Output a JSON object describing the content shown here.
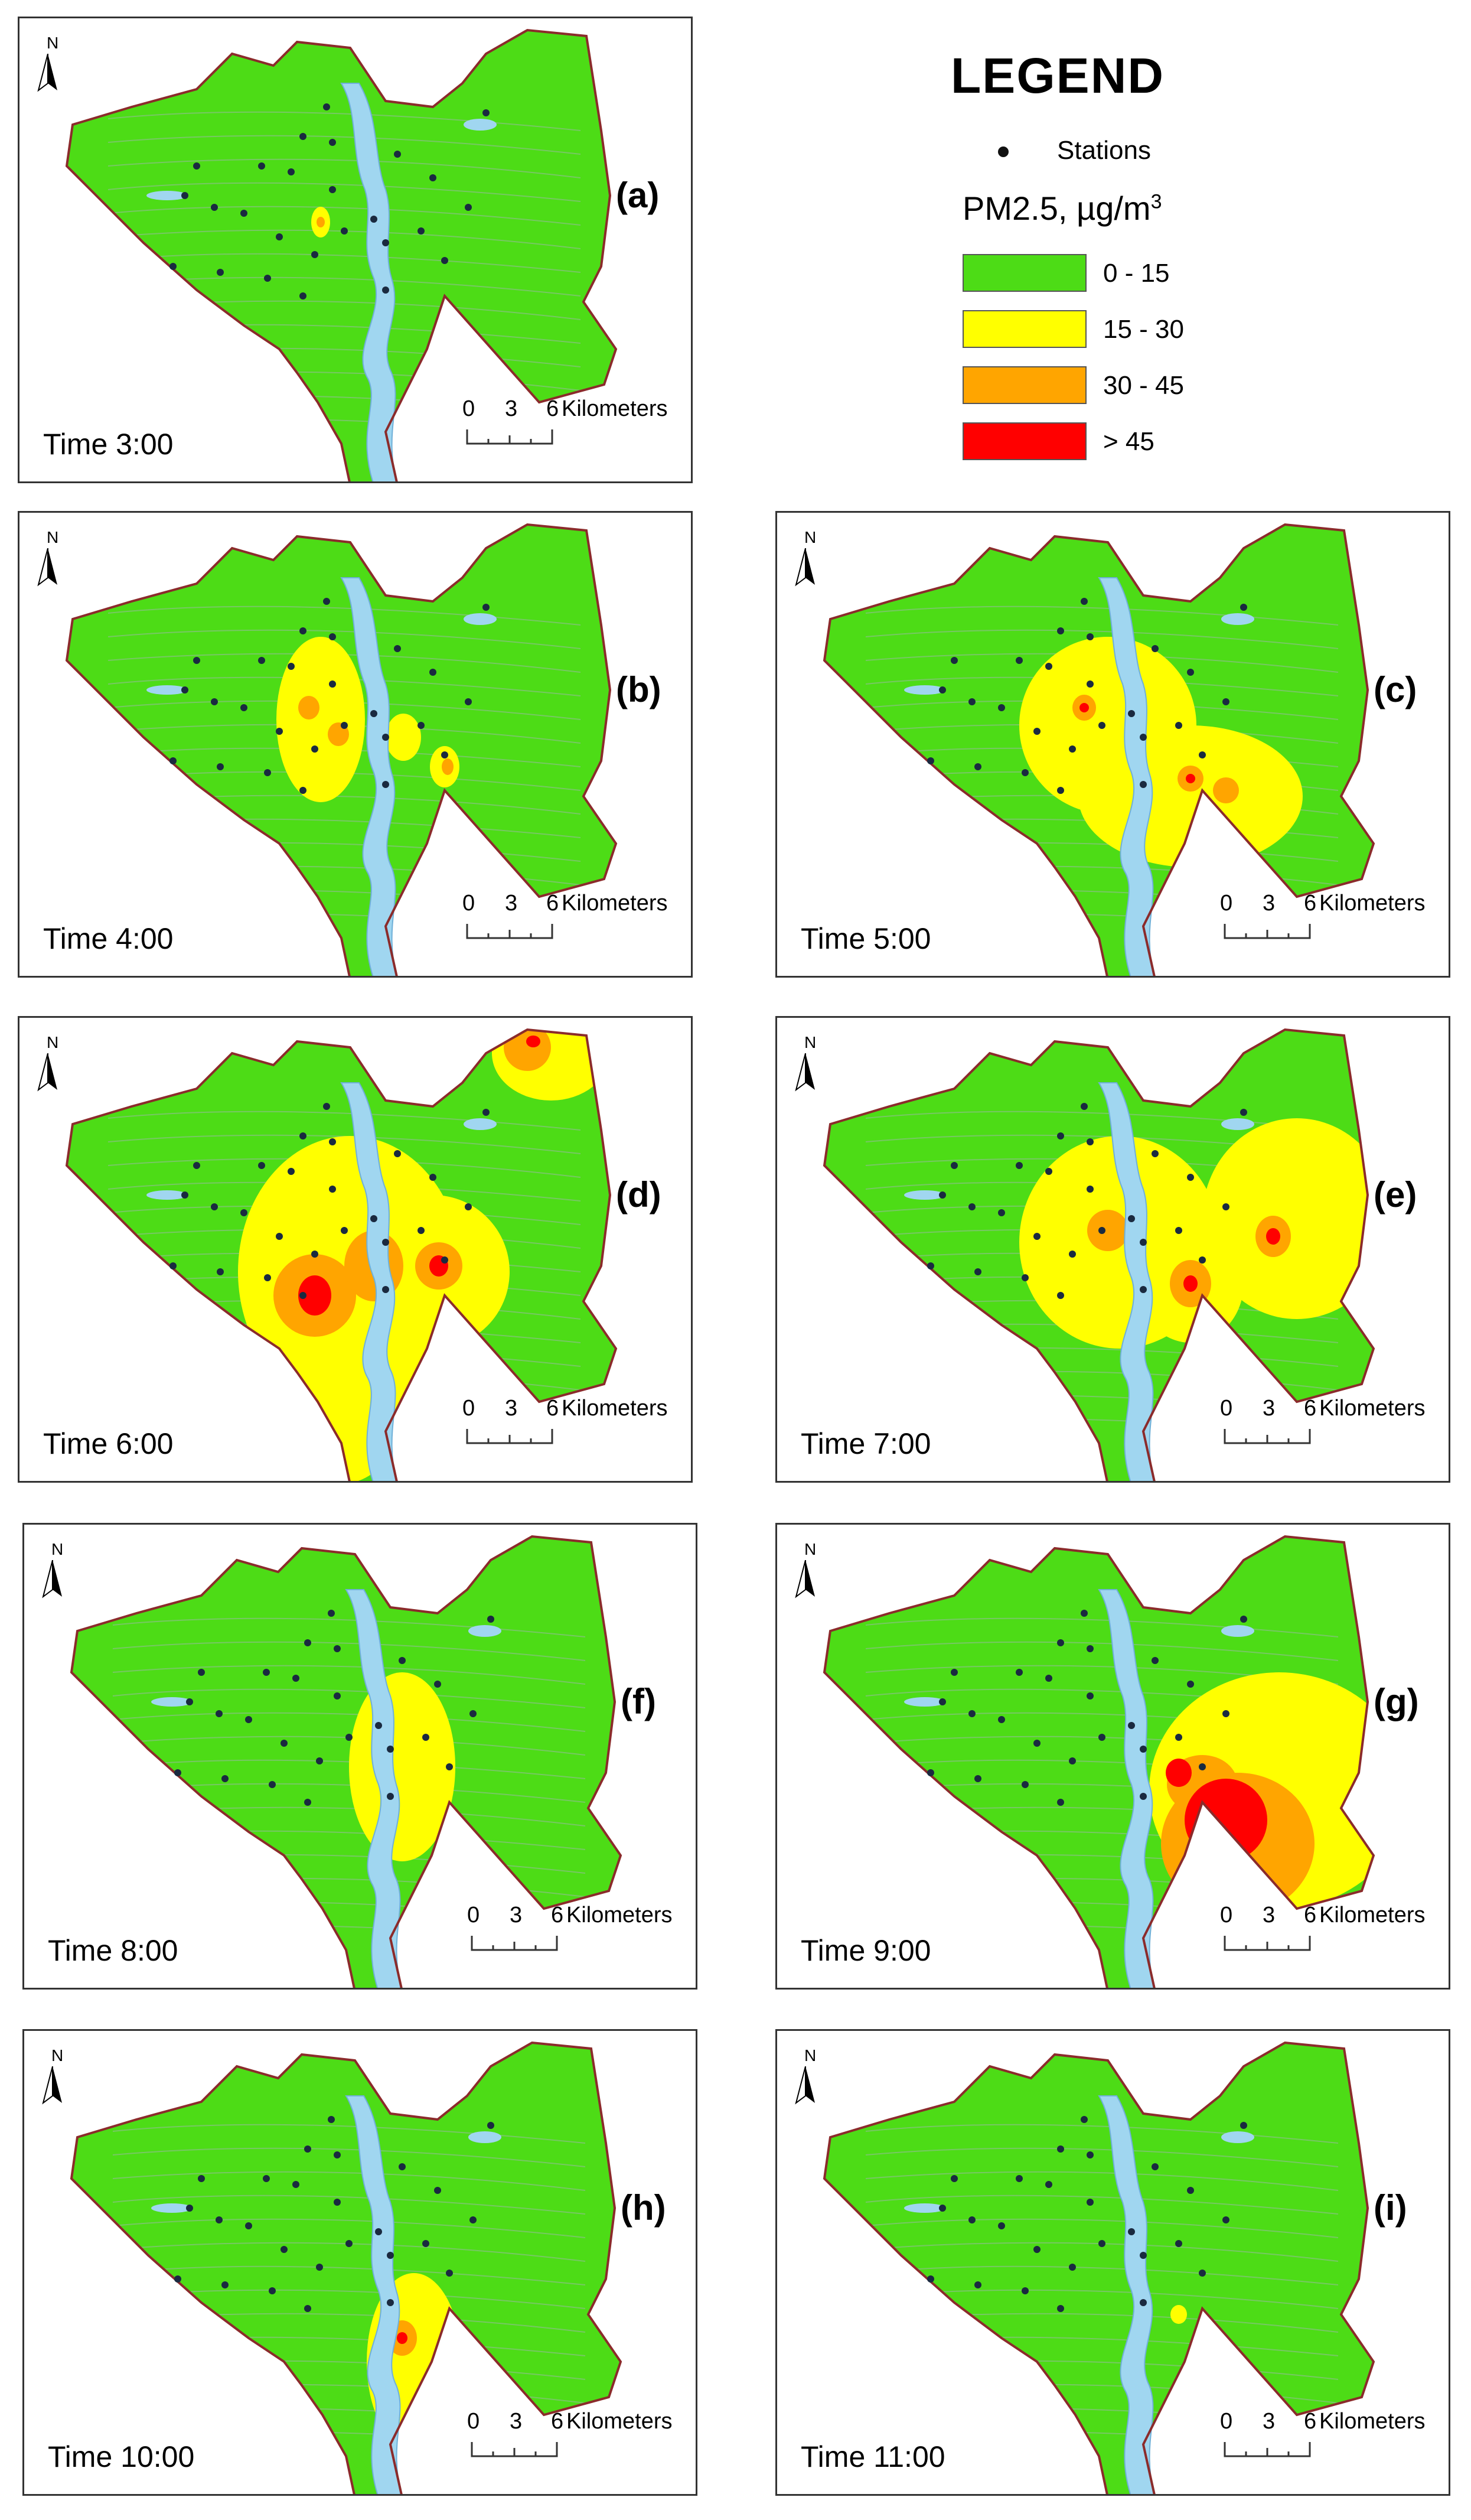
{
  "legend": {
    "title": "LEGEND",
    "stations_label": "Stations",
    "unit_prefix": "PM2.5, µg/m",
    "unit_sup": "3",
    "classes": [
      {
        "label": "0 - 15",
        "color": "#4ddc16"
      },
      {
        "label": "15 - 30",
        "color": "#ffff00"
      },
      {
        "label": "30 - 45",
        "color": "#ffa500"
      },
      {
        "label": "> 45",
        "color": "#ff0000"
      }
    ]
  },
  "colors": {
    "green": "#4ddc16",
    "yellow": "#ffff00",
    "orange": "#ffa500",
    "red": "#ff0000",
    "water": "#a0d6f0",
    "border": "#8b2b2b",
    "station": "#1a2a40"
  },
  "north_label": "N",
  "scale": {
    "t0": "0",
    "t3": "3",
    "t6": "6",
    "unit": "Kilometers"
  },
  "panels": [
    {
      "id": "a",
      "label": "(a)",
      "time": "Time 3:00"
    },
    {
      "id": "b",
      "label": "(b)",
      "time": "Time 4:00"
    },
    {
      "id": "c",
      "label": "(c)",
      "time": "Time 5:00"
    },
    {
      "id": "d",
      "label": "(d)",
      "time": "Time 6:00"
    },
    {
      "id": "e",
      "label": "(e)",
      "time": "Time 7:00"
    },
    {
      "id": "f",
      "label": "(f)",
      "time": "Time 8:00"
    },
    {
      "id": "g",
      "label": "(g)",
      "time": "Time 9:00"
    },
    {
      "id": "h",
      "label": "(h)",
      "time": "Time 10:00"
    },
    {
      "id": "i",
      "label": "(i)",
      "time": "Time 11:00"
    }
  ]
}
